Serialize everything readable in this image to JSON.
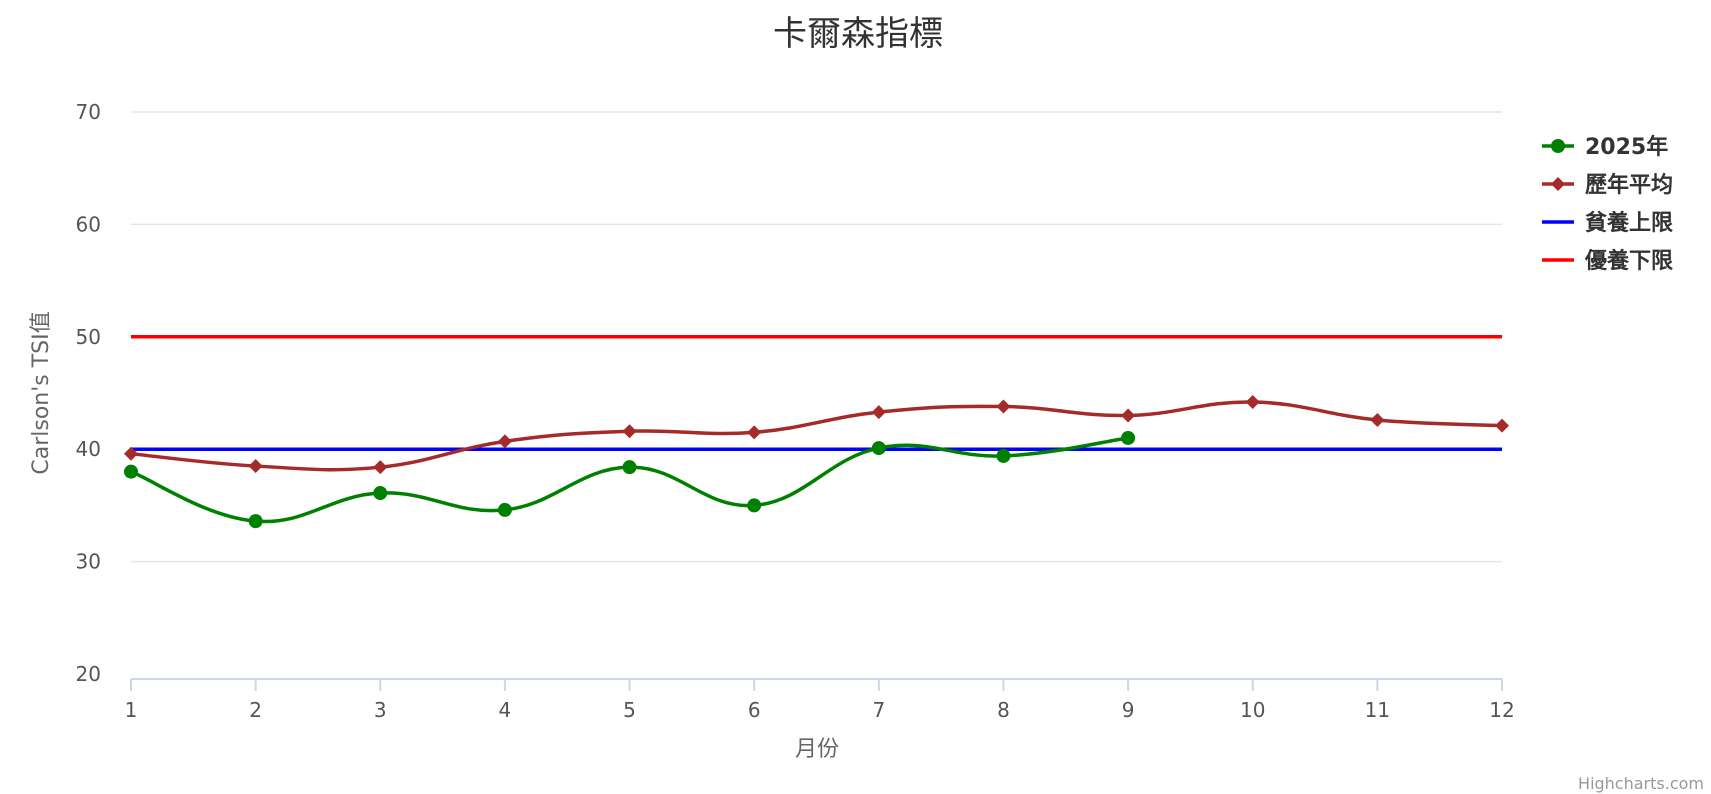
{
  "chart_data": {
    "type": "line",
    "title": "卡爾森指標",
    "xlabel": "月份",
    "ylabel": "Carlson's TSI值",
    "x": [
      1,
      2,
      3,
      4,
      5,
      6,
      7,
      8,
      9,
      10,
      11,
      12
    ],
    "ylim": [
      20,
      70
    ],
    "yticks": [
      20,
      30,
      40,
      50,
      60,
      70
    ],
    "grid": true,
    "legend_position": "right",
    "series": [
      {
        "name": "2025年",
        "marker": "circle",
        "color": "#008000",
        "values": [
          38.0,
          33.6,
          36.1,
          34.6,
          38.4,
          35.0,
          40.1,
          39.4,
          41.0,
          null,
          null,
          null
        ]
      },
      {
        "name": "歷年平均",
        "marker": "diamond",
        "color": "#a52a2a",
        "values": [
          39.6,
          38.5,
          38.4,
          40.7,
          41.6,
          41.5,
          43.3,
          43.8,
          43.0,
          44.2,
          42.6,
          42.1
        ]
      },
      {
        "name": "貧養上限",
        "marker": "none",
        "color": "#0000ff",
        "values": [
          40,
          40,
          40,
          40,
          40,
          40,
          40,
          40,
          40,
          40,
          40,
          40
        ]
      },
      {
        "name": "優養下限",
        "marker": "none",
        "color": "#ff0000",
        "values": [
          50,
          50,
          50,
          50,
          50,
          50,
          50,
          50,
          50,
          50,
          50,
          50
        ]
      }
    ]
  },
  "credits": "Highcharts.com"
}
